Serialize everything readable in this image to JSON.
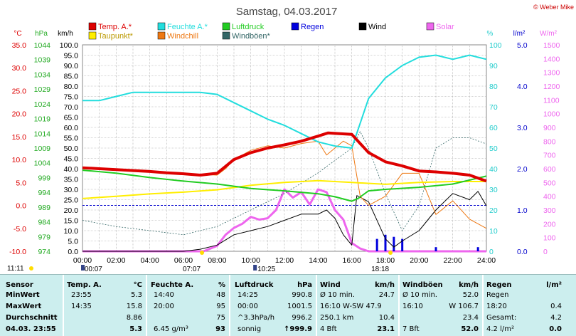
{
  "title": "Samstag, 04.03.2017",
  "credit": "© Weber Mike",
  "legend": {
    "row1": [
      {
        "label": "Temp. A.*",
        "color": "#dd0000"
      },
      {
        "label": "Feuchte A.*",
        "color": "#22dddd"
      },
      {
        "label": "Luftdruck",
        "color": "#22cc22"
      },
      {
        "label": "Regen",
        "color": "#0000dd"
      },
      {
        "label": "Wind",
        "color": "#000000"
      },
      {
        "label": "Solar",
        "color": "#ee66ee"
      }
    ],
    "row2": [
      {
        "label": "Taupunkt*",
        "color": "#ffee00"
      },
      {
        "label": "Windchill",
        "color": "#ee7711"
      },
      {
        "label": "Windböen*",
        "color": "#336666"
      }
    ]
  },
  "axis_units": {
    "temp": "°C",
    "pressure": "hPa",
    "wind": "km/h",
    "humidity": "%",
    "rain": "l/m²",
    "solar": "W/m²"
  },
  "axes": {
    "temp_ticks": [
      "35.0",
      "30.0",
      "25.0",
      "20.0",
      "15.0",
      "10.0",
      "5.0",
      "0.0",
      "-5.0",
      "-10.0"
    ],
    "pressure_ticks": [
      "1044",
      "1039",
      "1034",
      "1029",
      "1024",
      "1019",
      "1014",
      "1009",
      "1004",
      "999",
      "994",
      "989",
      "984",
      "979",
      "974"
    ],
    "wind_ticks": [
      "100.0",
      "95.0",
      "90.0",
      "85.0",
      "80.0",
      "75.0",
      "70.0",
      "65.0",
      "60.0",
      "55.0",
      "50.0",
      "45.0",
      "40.0",
      "35.0",
      "30.0",
      "25.0",
      "20.0",
      "15.0",
      "10.0",
      "5.0",
      "0.0"
    ],
    "humidity_ticks": [
      "100",
      "90",
      "80",
      "70",
      "60",
      "50",
      "40",
      "30",
      "20",
      "10",
      "0"
    ],
    "rain_ticks": [
      "5.0",
      "4.0",
      "3.0",
      "2.0",
      "1.0",
      "0.0"
    ],
    "solar_ticks": [
      "1500",
      "1400",
      "1300",
      "1200",
      "1100",
      "1000",
      "900",
      "800",
      "700",
      "600",
      "500",
      "400",
      "300",
      "200",
      "100",
      "0"
    ],
    "x_ticks": [
      "00:00",
      "02:00",
      "04:00",
      "06:00",
      "08:00",
      "10:00",
      "12:00",
      "14:00",
      "16:00",
      "18:00",
      "20:00",
      "22:00",
      "24:00"
    ]
  },
  "time_markers": [
    {
      "label": "11:11",
      "position": "left-start"
    },
    {
      "label": "00:07",
      "position": "moonrise"
    },
    {
      "label": "07:07",
      "position": "sunrise"
    },
    {
      "label": "10:25",
      "position": "moonset"
    },
    {
      "label": "18:18",
      "position": "sunset"
    }
  ],
  "chart_data": {
    "type": "line",
    "xlabel": "",
    "x_range": [
      "00:00",
      "24:00"
    ],
    "grid": true,
    "series": [
      {
        "name": "Temp. A.*",
        "unit": "°C",
        "x": [
          0,
          1,
          2,
          3,
          4,
          5,
          6,
          7,
          8,
          9,
          10,
          11,
          12,
          13,
          14,
          14.6,
          15,
          16,
          16.5,
          17,
          18,
          19,
          20,
          21,
          22,
          23,
          24
        ],
        "values": [
          8.2,
          8.0,
          7.8,
          7.6,
          7.4,
          7.1,
          6.9,
          6.6,
          7.0,
          10.0,
          11.5,
          12.5,
          13.2,
          14.0,
          15.1,
          15.8,
          15.7,
          15.5,
          13.5,
          11.5,
          9.5,
          8.6,
          7.5,
          7.3,
          7.0,
          6.6,
          5.3
        ]
      },
      {
        "name": "Taupunkt*",
        "unit": "°C",
        "x": [
          0,
          2,
          4,
          6,
          8,
          10,
          12,
          14,
          16,
          18,
          20,
          22,
          24
        ],
        "values": [
          1.5,
          2.0,
          2.5,
          2.9,
          3.4,
          4.4,
          5.0,
          5.4,
          5.0,
          4.6,
          5.0,
          5.2,
          5.2
        ]
      },
      {
        "name": "Feuchte A.*",
        "unit": "%",
        "x": [
          0,
          1,
          2,
          3,
          4,
          5,
          6,
          7,
          8,
          9,
          10,
          11,
          12,
          13,
          14,
          15,
          16,
          16.5,
          17,
          18,
          19,
          20,
          21,
          22,
          23,
          24
        ],
        "values": [
          73,
          73,
          75,
          77,
          77,
          77,
          77,
          77,
          76,
          72,
          68,
          64,
          61,
          57,
          53,
          51,
          50,
          62,
          74,
          84,
          90,
          94,
          95,
          93,
          95,
          93
        ]
      },
      {
        "name": "Luftdruck",
        "unit": "hPa",
        "x": [
          0,
          2,
          4,
          6,
          8,
          10,
          12,
          14,
          15,
          16,
          16.4,
          17,
          18,
          20,
          22,
          24
        ],
        "values": [
          1001.5,
          1000.5,
          999.0,
          997.8,
          996.8,
          995.3,
          994.5,
          993.5,
          992.5,
          991.0,
          992.0,
          994.5,
          995.0,
          995.7,
          996.8,
          999.5
        ]
      },
      {
        "name": "Windchill",
        "unit": "°C",
        "x": [
          0,
          2,
          4,
          6,
          8,
          8.5,
          9,
          10,
          11,
          12,
          13,
          14,
          14.5,
          15,
          15.5,
          16,
          16.5,
          17,
          18,
          19,
          20,
          21,
          22,
          23,
          24
        ],
        "values": [
          8.0,
          7.8,
          7.4,
          6.9,
          6.6,
          8.0,
          10.0,
          12.0,
          13.0,
          12.5,
          13.5,
          14.0,
          11.0,
          12.5,
          14.0,
          13.0,
          2.0,
          0.0,
          2.0,
          7.0,
          7.0,
          -2.0,
          1.0,
          -3.0,
          -5.0
        ]
      },
      {
        "name": "Wind",
        "unit": "km/h",
        "x": [
          0,
          6,
          7,
          8,
          9,
          10,
          11,
          12,
          13,
          14,
          14.5,
          15,
          15.5,
          16,
          16.3,
          17,
          18,
          18.5,
          19,
          20,
          21,
          22,
          23,
          23.5,
          24
        ],
        "values": [
          0,
          0,
          1,
          3,
          8,
          10,
          12,
          15,
          18,
          18,
          20,
          16,
          8,
          3,
          27,
          24,
          6,
          2,
          5,
          10,
          20,
          28,
          25,
          29,
          22
        ]
      },
      {
        "name": "Windböen*",
        "unit": "km/h",
        "x": [
          0,
          2,
          4,
          6,
          8,
          10,
          12,
          14,
          15,
          16,
          16.5,
          17,
          18,
          19,
          20,
          21,
          22,
          23,
          24
        ],
        "values": [
          15,
          12,
          10,
          8,
          12,
          20,
          28,
          38,
          44,
          50,
          58,
          50,
          28,
          10,
          22,
          50,
          55,
          55,
          52
        ]
      },
      {
        "name": "Solar",
        "unit": "W/m²",
        "x": [
          0,
          7.2,
          8,
          8.5,
          9,
          9.5,
          10,
          10.5,
          11,
          11.5,
          12,
          12.5,
          13,
          13.5,
          14,
          14.5,
          15,
          15.5,
          16,
          16.5,
          17,
          24
        ],
        "values": [
          0,
          0,
          40,
          120,
          170,
          200,
          250,
          230,
          240,
          300,
          450,
          390,
          430,
          340,
          450,
          430,
          300,
          230,
          60,
          20,
          0,
          0
        ]
      },
      {
        "name": "Regen",
        "unit": "l/m²",
        "x": [
          17.5,
          18,
          18.5,
          19,
          21,
          23.5
        ],
        "values": [
          0.3,
          0.4,
          0.35,
          0.3,
          0.1,
          0.1
        ]
      }
    ]
  },
  "stats": {
    "headers": {
      "sensor": "Sensor",
      "temp": "Temp. A.",
      "temp_unit": "°C",
      "hum": "Feuchte A.",
      "hum_unit": "%",
      "press": "Luftdruck",
      "press_unit": "hPa",
      "wind": "Wind",
      "wind_unit": "km/h",
      "gust": "Windböen",
      "gust_unit": "km/h",
      "rain": "Regen",
      "rain_unit": "l/m²"
    },
    "rows": [
      {
        "label": "MinWert",
        "temp_time": "23:55",
        "temp": "5.3",
        "hum_time": "14:40",
        "hum": "48",
        "press_time": "14:25",
        "press": "990.8",
        "wind_label": "Ø 10 min.",
        "wind": "24.7",
        "gust_label": "Ø 10 min.",
        "gust": "52.0",
        "rain_label": "Regen",
        "rain": ""
      },
      {
        "label": "MaxWert",
        "temp_time": "14:35",
        "temp": "15.8",
        "hum_time": "20:00",
        "hum": "95",
        "press_time": "00:00",
        "press": "1001.5",
        "wind_label": "16:10  W-SW 47.9",
        "wind": "",
        "gust_label": "16:10",
        "gust": "W 106.7",
        "rain_label": "18:20",
        "rain": "0.4"
      },
      {
        "label": "Durchschnitt",
        "temp_time": "",
        "temp": "8.86",
        "hum_time": "",
        "hum": "75",
        "press_time": "^3.3hPa/h",
        "press": "996.2",
        "wind_label": "250.1 km",
        "wind": "10.4",
        "gust_label": "",
        "gust": "23.4",
        "rain_label": "Gesamt:",
        "rain": "4.2"
      },
      {
        "label": "04.03. 23:55",
        "temp_time": "",
        "temp": "5.3",
        "hum_time": "6.45 g/m³",
        "hum": "93",
        "press_time": "sonnig",
        "press": "↑999.9",
        "wind_label": "4 Bft",
        "wind": "23.1",
        "gust_label": "7 Bft",
        "gust": "52.0",
        "rain_label": "4.2 l/m²",
        "rain": "0.0"
      }
    ]
  }
}
